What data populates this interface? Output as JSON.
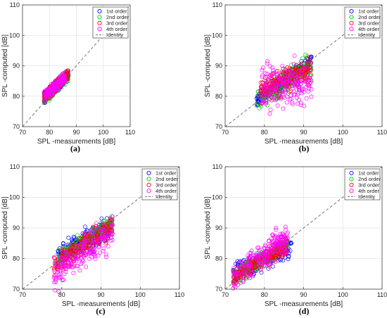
{
  "chart_data": [
    {
      "type": "scatter",
      "caption": "(a)",
      "xlabel": "SPL -measurements [dB]",
      "ylabel": "SPL -computed [dB]",
      "xlim": [
        70,
        110
      ],
      "ylim": [
        70,
        110
      ],
      "xticks": [
        70,
        80,
        90,
        100,
        110
      ],
      "yticks": [
        70,
        80,
        90,
        100,
        110
      ],
      "grid": true,
      "legend": "top-right",
      "series": [
        {
          "name": "1st order",
          "color": "#0000ff",
          "cloud": {
            "x": [
              78,
              87
            ],
            "slope": 0.82,
            "intercept": 15.5,
            "spread": 0.9
          }
        },
        {
          "name": "2nd order",
          "color": "#00cc00",
          "cloud": {
            "x": [
              78,
              87
            ],
            "slope": 0.82,
            "intercept": 15.5,
            "spread": 0.9
          }
        },
        {
          "name": "3rd order",
          "color": "#ff0000",
          "cloud": {
            "x": [
              78,
              87
            ],
            "slope": 0.82,
            "intercept": 15.8,
            "spread": 0.9
          }
        },
        {
          "name": "4th order",
          "color": "#ff00ff",
          "cloud": {
            "x": [
              78,
              86
            ],
            "slope": 0.82,
            "intercept": 15.8,
            "spread": 0.8
          }
        },
        {
          "name": "Identity",
          "color": "#666666",
          "line": [
            [
              70,
              70
            ],
            [
              110,
              110
            ]
          ]
        }
      ]
    },
    {
      "type": "scatter",
      "caption": "(b)",
      "xlabel": "SPL -measurements [dB]",
      "ylabel": "SPL -computed [dB]",
      "xlim": [
        70,
        110
      ],
      "ylim": [
        70,
        110
      ],
      "xticks": [
        70,
        80,
        90,
        100,
        110
      ],
      "yticks": [
        70,
        80,
        90,
        100,
        110
      ],
      "grid": true,
      "legend": "top-right",
      "series": [
        {
          "name": "1st order",
          "color": "#0000ff",
          "cloud": {
            "x": [
              78,
              92
            ],
            "slope": 0.9,
            "intercept": 8.5,
            "spread": 1.2
          }
        },
        {
          "name": "2nd order",
          "color": "#00cc00",
          "cloud": {
            "x": [
              78,
              92
            ],
            "slope": 0.85,
            "intercept": 12.0,
            "spread": 1.8
          }
        },
        {
          "name": "3rd order",
          "color": "#ff0000",
          "cloud": {
            "x": [
              79,
              92
            ],
            "slope": 0.55,
            "intercept": 38.5,
            "spread": 1.8
          }
        },
        {
          "name": "4th order",
          "color": "#ff00ff",
          "cloud": {
            "x": [
              79,
              92
            ],
            "slope": 0.2,
            "intercept": 67.0,
            "spread": 3.5
          }
        },
        {
          "name": "Identity",
          "color": "#666666",
          "line": [
            [
              70,
              70
            ],
            [
              110,
              110
            ]
          ]
        }
      ]
    },
    {
      "type": "scatter",
      "caption": "(c)",
      "xlabel": "SPL -measurements [dB]",
      "ylabel": "SPL -computed [dB]",
      "xlim": [
        70,
        110
      ],
      "ylim": [
        70,
        110
      ],
      "xticks": [
        70,
        80,
        90,
        100,
        110
      ],
      "yticks": [
        70,
        80,
        90,
        100,
        110
      ],
      "grid": true,
      "legend": "top-right",
      "series": [
        {
          "name": "1st order",
          "color": "#0000ff",
          "cloud": {
            "x": [
              79,
              93
            ],
            "slope": 0.7,
            "intercept": 25.5,
            "spread": 1.8
          }
        },
        {
          "name": "2nd order",
          "color": "#00cc00",
          "cloud": {
            "x": [
              79,
              93
            ],
            "slope": 0.85,
            "intercept": 12.5,
            "spread": 1.5
          }
        },
        {
          "name": "3rd order",
          "color": "#ff0000",
          "cloud": {
            "x": [
              78,
              93
            ],
            "slope": 0.85,
            "intercept": 11.5,
            "spread": 1.8
          }
        },
        {
          "name": "4th order",
          "color": "#ff00ff",
          "cloud": {
            "x": [
              78,
              93
            ],
            "slope": 0.9,
            "intercept": 5.0,
            "spread": 2.5
          }
        },
        {
          "name": "Identity",
          "color": "#666666",
          "line": [
            [
              70,
              70
            ],
            [
              110,
              110
            ]
          ]
        }
      ]
    },
    {
      "type": "scatter",
      "caption": "(d)",
      "xlabel": "SPL -measurements [dB]",
      "ylabel": "SPL -computed [dB]",
      "xlim": [
        70,
        110
      ],
      "ylim": [
        70,
        110
      ],
      "xticks": [
        70,
        80,
        90,
        100,
        110
      ],
      "yticks": [
        70,
        80,
        90,
        100,
        110
      ],
      "grid": true,
      "legend": "top-right",
      "series": [
        {
          "name": "1st order",
          "color": "#0000ff",
          "cloud": {
            "x": [
              72,
              87
            ],
            "slope": 0.55,
            "intercept": 35.5,
            "spread": 1.5
          }
        },
        {
          "name": "2nd order",
          "color": "#00cc00",
          "cloud": {
            "x": [
              72,
              86
            ],
            "slope": 0.75,
            "intercept": 20.0,
            "spread": 1.3
          }
        },
        {
          "name": "3rd order",
          "color": "#ff0000",
          "cloud": {
            "x": [
              72,
              86
            ],
            "slope": 0.8,
            "intercept": 16.0,
            "spread": 1.4
          }
        },
        {
          "name": "4th order",
          "color": "#ff00ff",
          "cloud": {
            "x": [
              72,
              86
            ],
            "slope": 0.95,
            "intercept": 5.5,
            "spread": 2.2
          }
        },
        {
          "name": "Identity",
          "color": "#666666",
          "line": [
            [
              70,
              70
            ],
            [
              110,
              110
            ]
          ]
        }
      ]
    }
  ]
}
